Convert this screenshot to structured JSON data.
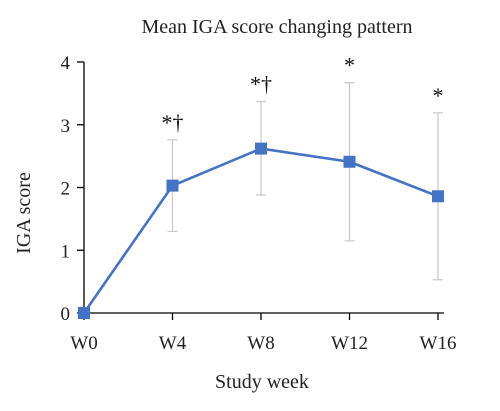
{
  "chart_data": {
    "type": "line",
    "title": "Mean IGA score changing pattern",
    "xlabel": "Study week",
    "ylabel": "IGA score",
    "categories": [
      "W0",
      "W4",
      "W8",
      "W12",
      "W16"
    ],
    "ylim": [
      0,
      4
    ],
    "yticks": [
      "0",
      "1",
      "2",
      "3",
      "4"
    ],
    "grid": false,
    "series": [
      {
        "values": [
          0,
          2.03,
          2.62,
          2.41,
          1.86
        ],
        "error_upper": [
          0,
          2.76,
          3.37,
          3.67,
          3.19
        ],
        "error_lower": [
          0,
          1.3,
          1.88,
          1.15,
          0.53
        ],
        "annotations": [
          "",
          "*†",
          "*†",
          "*",
          "*"
        ]
      }
    ],
    "colors": {
      "line": "#4472C4",
      "marker": "#4472C4",
      "error_bar": "#C8C8C8",
      "axis": "#000000"
    }
  }
}
